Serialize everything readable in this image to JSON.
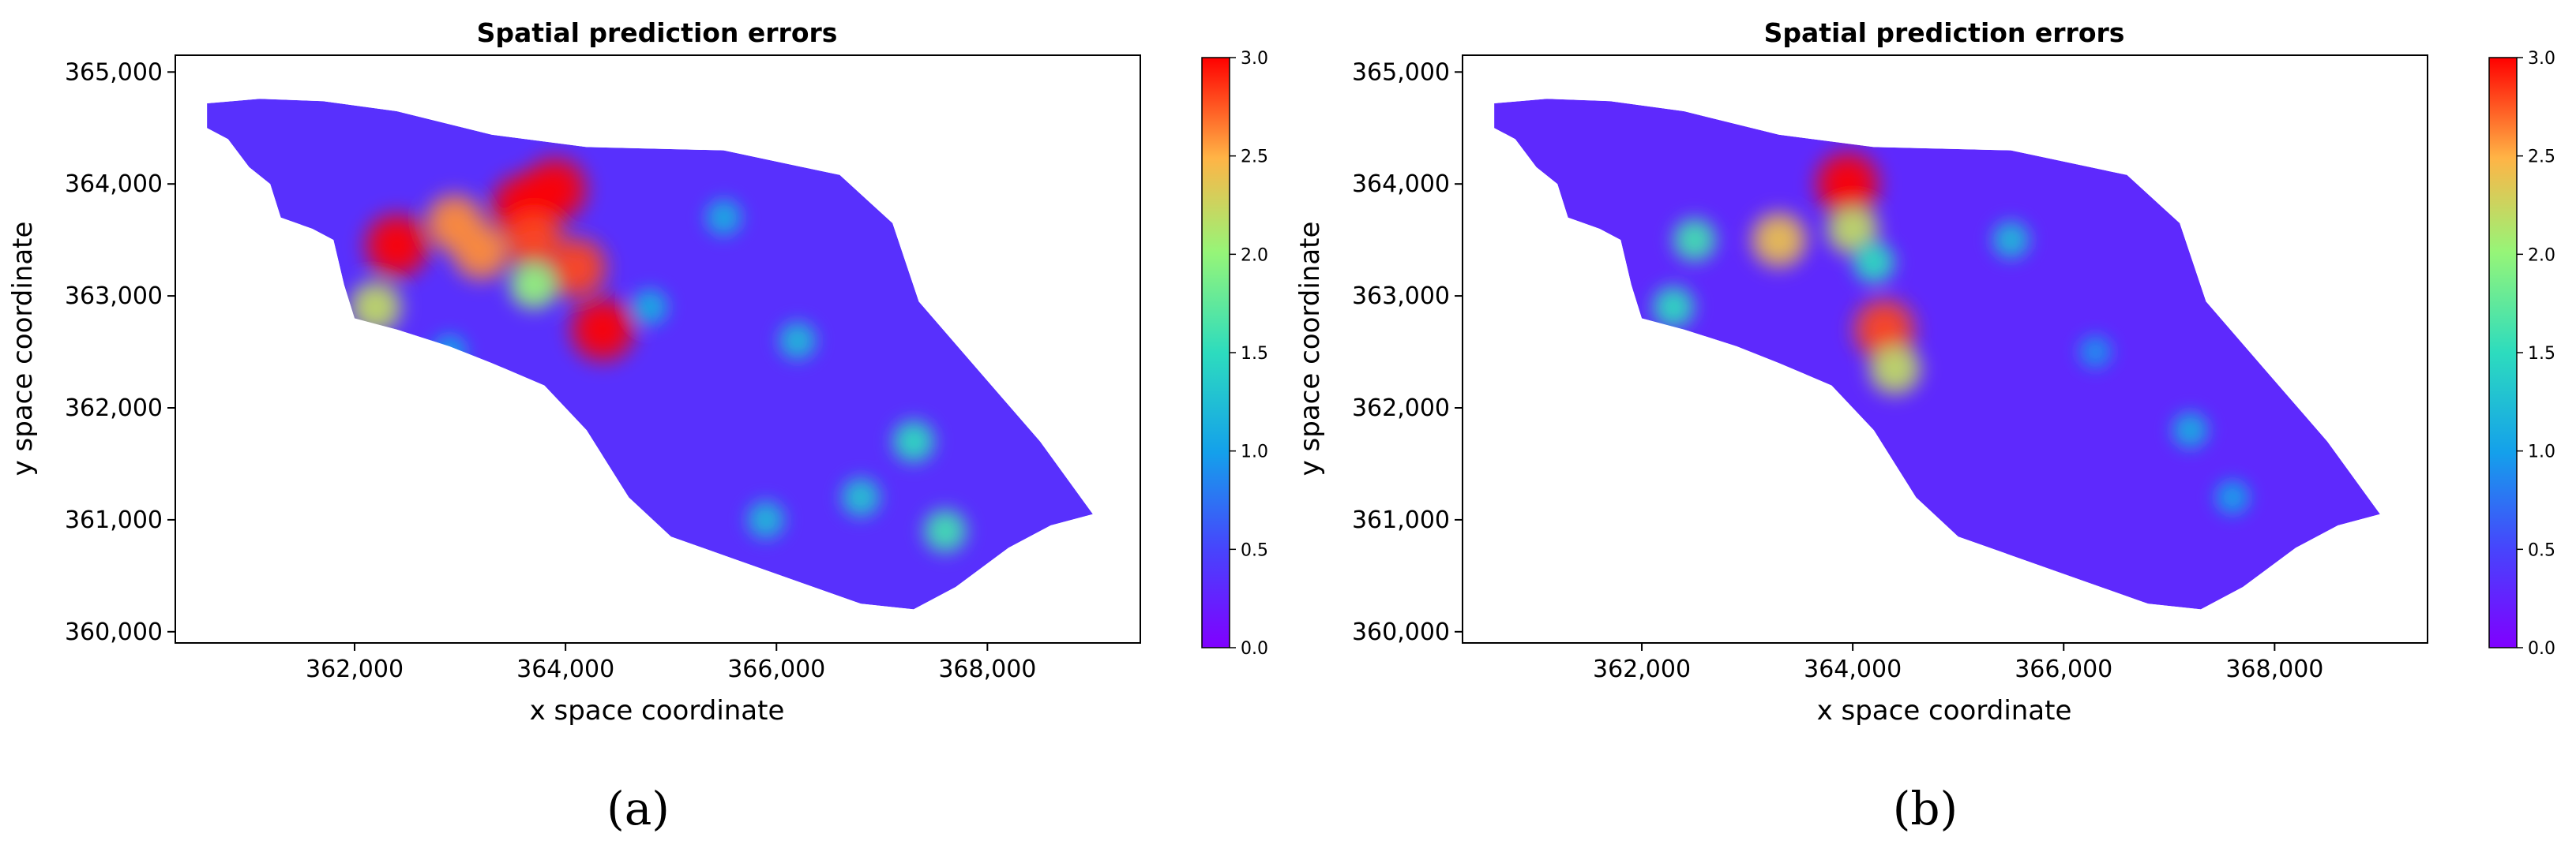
{
  "chart_data": [
    {
      "type": "heatmap",
      "panel_label": "(a)",
      "title": "Spatial prediction errors",
      "xlabel": "x space coordinate",
      "ylabel": "y space coordinate",
      "xlim": [
        360300,
        369450
      ],
      "ylim": [
        359900,
        365150
      ],
      "x_ticks": [
        362000,
        364000,
        366000,
        368000
      ],
      "x_tick_labels": [
        "362,000",
        "364,000",
        "366,000",
        "368,000"
      ],
      "y_ticks": [
        360000,
        361000,
        362000,
        363000,
        364000,
        365000
      ],
      "y_tick_labels": [
        "360,000",
        "361,000",
        "362,000",
        "363,000",
        "364,000",
        "365,000"
      ],
      "colorbar": {
        "range": [
          0.0,
          3.0
        ],
        "ticks": [
          0.0,
          0.5,
          1.0,
          1.5,
          2.0,
          2.5,
          3.0
        ],
        "tick_labels": [
          "0.0",
          "0.5",
          "1.0",
          "1.5",
          "2.0",
          "2.5",
          "3.0"
        ],
        "colormap": "rainbow"
      },
      "boundary": [
        [
          360600,
          364720
        ],
        [
          361100,
          364760
        ],
        [
          361700,
          364740
        ],
        [
          362400,
          364650
        ],
        [
          363300,
          364440
        ],
        [
          364200,
          364330
        ],
        [
          365500,
          364300
        ],
        [
          366600,
          364080
        ],
        [
          367100,
          363650
        ],
        [
          367350,
          362950
        ],
        [
          367900,
          362350
        ],
        [
          368500,
          361700
        ],
        [
          369000,
          361050
        ],
        [
          368600,
          360950
        ],
        [
          368200,
          360750
        ],
        [
          367700,
          360400
        ],
        [
          367300,
          360200
        ],
        [
          366800,
          360250
        ],
        [
          366200,
          360450
        ],
        [
          365600,
          360650
        ],
        [
          365000,
          360850
        ],
        [
          364600,
          361200
        ],
        [
          364200,
          361800
        ],
        [
          363800,
          362200
        ],
        [
          363300,
          362400
        ],
        [
          362900,
          362550
        ],
        [
          362400,
          362700
        ],
        [
          362000,
          362800
        ],
        [
          361900,
          363100
        ],
        [
          361800,
          363500
        ],
        [
          361600,
          363600
        ],
        [
          361300,
          363700
        ],
        [
          361200,
          364000
        ],
        [
          361000,
          364150
        ],
        [
          360800,
          364400
        ],
        [
          360600,
          364500
        ]
      ],
      "background_value": 0.35,
      "hotspots": [
        {
          "x": 364350,
          "y": 362700,
          "value": 3.0
        },
        {
          "x": 363900,
          "y": 363950,
          "value": 3.0
        },
        {
          "x": 363600,
          "y": 363800,
          "value": 3.0
        },
        {
          "x": 362400,
          "y": 363450,
          "value": 3.0
        },
        {
          "x": 363700,
          "y": 363500,
          "value": 2.8
        },
        {
          "x": 364100,
          "y": 363250,
          "value": 2.8
        },
        {
          "x": 362950,
          "y": 363650,
          "value": 2.6
        },
        {
          "x": 363200,
          "y": 363400,
          "value": 2.6
        },
        {
          "x": 362200,
          "y": 362900,
          "value": 2.2
        },
        {
          "x": 363700,
          "y": 363100,
          "value": 2.0
        },
        {
          "x": 367300,
          "y": 361700,
          "value": 1.5
        },
        {
          "x": 367600,
          "y": 360900,
          "value": 1.6
        },
        {
          "x": 366800,
          "y": 361200,
          "value": 1.3
        },
        {
          "x": 366200,
          "y": 362600,
          "value": 1.2
        },
        {
          "x": 365500,
          "y": 363700,
          "value": 1.1
        },
        {
          "x": 365900,
          "y": 361000,
          "value": 1.2
        },
        {
          "x": 364800,
          "y": 362900,
          "value": 1.1
        },
        {
          "x": 362900,
          "y": 362500,
          "value": 1.0
        }
      ]
    },
    {
      "type": "heatmap",
      "panel_label": "(b)",
      "title": "Spatial prediction errors",
      "xlabel": "x space coordinate",
      "ylabel": "y space coordinate",
      "xlim": [
        360300,
        369450
      ],
      "ylim": [
        359900,
        365150
      ],
      "x_ticks": [
        362000,
        364000,
        366000,
        368000
      ],
      "x_tick_labels": [
        "362,000",
        "364,000",
        "366,000",
        "368,000"
      ],
      "y_ticks": [
        360000,
        361000,
        362000,
        363000,
        364000,
        365000
      ],
      "y_tick_labels": [
        "360,000",
        "361,000",
        "362,000",
        "363,000",
        "364,000",
        "365,000"
      ],
      "colorbar": {
        "range": [
          0.0,
          3.0
        ],
        "ticks": [
          0.0,
          0.5,
          1.0,
          1.5,
          2.0,
          2.5,
          3.0
        ],
        "tick_labels": [
          "0.0",
          "0.5",
          "1.0",
          "1.5",
          "2.0",
          "2.5",
          "3.0"
        ],
        "colormap": "rainbow"
      },
      "boundary": [
        [
          360600,
          364720
        ],
        [
          361100,
          364760
        ],
        [
          361700,
          364740
        ],
        [
          362400,
          364650
        ],
        [
          363300,
          364440
        ],
        [
          364200,
          364330
        ],
        [
          365500,
          364300
        ],
        [
          366600,
          364080
        ],
        [
          367100,
          363650
        ],
        [
          367350,
          362950
        ],
        [
          367900,
          362350
        ],
        [
          368500,
          361700
        ],
        [
          369000,
          361050
        ],
        [
          368600,
          360950
        ],
        [
          368200,
          360750
        ],
        [
          367700,
          360400
        ],
        [
          367300,
          360200
        ],
        [
          366800,
          360250
        ],
        [
          366200,
          360450
        ],
        [
          365600,
          360650
        ],
        [
          365000,
          360850
        ],
        [
          364600,
          361200
        ],
        [
          364200,
          361800
        ],
        [
          363800,
          362200
        ],
        [
          363300,
          362400
        ],
        [
          362900,
          362550
        ],
        [
          362400,
          362700
        ],
        [
          362000,
          362800
        ],
        [
          361900,
          363100
        ],
        [
          361800,
          363500
        ],
        [
          361600,
          363600
        ],
        [
          361300,
          363700
        ],
        [
          361200,
          364000
        ],
        [
          361000,
          364150
        ],
        [
          360800,
          364400
        ],
        [
          360600,
          364500
        ]
      ],
      "background_value": 0.3,
      "hotspots": [
        {
          "x": 363950,
          "y": 364000,
          "value": 3.0
        },
        {
          "x": 364300,
          "y": 362700,
          "value": 2.8
        },
        {
          "x": 363300,
          "y": 363500,
          "value": 2.4
        },
        {
          "x": 364000,
          "y": 363600,
          "value": 2.2
        },
        {
          "x": 362500,
          "y": 363500,
          "value": 1.6
        },
        {
          "x": 364400,
          "y": 362350,
          "value": 2.2
        },
        {
          "x": 364200,
          "y": 363300,
          "value": 1.5
        },
        {
          "x": 365500,
          "y": 363500,
          "value": 1.2
        },
        {
          "x": 367200,
          "y": 361800,
          "value": 1.1
        },
        {
          "x": 367600,
          "y": 361200,
          "value": 1.0
        },
        {
          "x": 366300,
          "y": 362500,
          "value": 0.9
        },
        {
          "x": 362300,
          "y": 362900,
          "value": 1.5
        }
      ]
    }
  ]
}
